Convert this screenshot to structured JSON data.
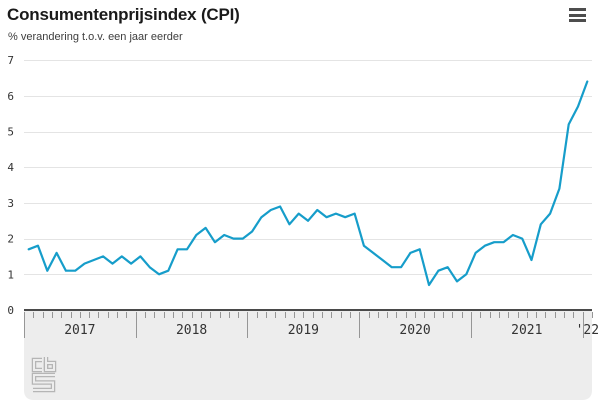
{
  "header": {
    "title": "Consumentenprijsindex (CPI)",
    "subtitle": "% verandering t.o.v. een jaar eerder",
    "menu_label": "Menu"
  },
  "theme": {
    "line_color": "#169dca",
    "grid_color": "#e4e4e4",
    "axis_color": "#4a4a4a",
    "tick_color": "#969696",
    "label_color": "#333333",
    "footer_bg": "#ededed",
    "logo_color": "#b5b5b5",
    "background": "#ffffff"
  },
  "chart_data": {
    "type": "line",
    "title": "Consumentenprijsindex (CPI)",
    "subtitle": "% verandering t.o.v. een jaar eerder",
    "x_start": "2017-01",
    "x_end": "2022-01",
    "x_interval": "month",
    "x_tick_labels": [
      "2017",
      "2018",
      "2019",
      "2020",
      "2021",
      "'22"
    ],
    "y_ticks": [
      0,
      1,
      2,
      3,
      4,
      5,
      6,
      7
    ],
    "ylim": [
      0,
      7
    ],
    "grid": true,
    "legend": "none",
    "series": [
      {
        "name": "CPI % verandering t.o.v. een jaar eerder",
        "values": [
          1.7,
          1.8,
          1.1,
          1.6,
          1.1,
          1.1,
          1.3,
          1.4,
          1.5,
          1.3,
          1.5,
          1.3,
          1.5,
          1.2,
          1.0,
          1.1,
          1.7,
          1.7,
          2.1,
          2.3,
          1.9,
          2.1,
          2.0,
          2.0,
          2.2,
          2.6,
          2.8,
          2.9,
          2.4,
          2.7,
          2.5,
          2.8,
          2.6,
          2.7,
          2.6,
          2.7,
          1.8,
          1.6,
          1.4,
          1.2,
          1.2,
          1.6,
          1.7,
          0.7,
          1.1,
          1.2,
          0.8,
          1.0,
          1.6,
          1.8,
          1.9,
          1.9,
          2.1,
          2.0,
          1.4,
          2.4,
          2.7,
          3.4,
          5.2,
          5.7,
          6.4
        ]
      }
    ]
  }
}
